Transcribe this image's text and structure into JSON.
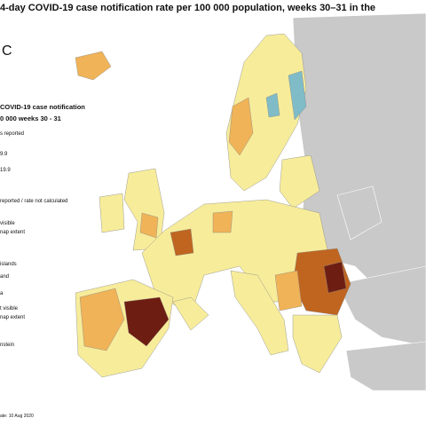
{
  "header": {
    "title": "4-day COVID-19 case notification rate per 100 000 population, weeks 30–31 in the",
    "logo": "C"
  },
  "legend": {
    "title_lines": [
      "COVID-19 case notification",
      "0 000 weeks 30 - 31"
    ],
    "items": [
      "s reported",
      "9.9",
      "19.9",
      "reported / rate not calculated",
      "visible",
      "nap extent",
      "islands",
      "and",
      "a",
      "t visible",
      "nap extent",
      "nstein"
    ]
  },
  "footer": {
    "date": "ate: 10 Aug 2020"
  }
}
